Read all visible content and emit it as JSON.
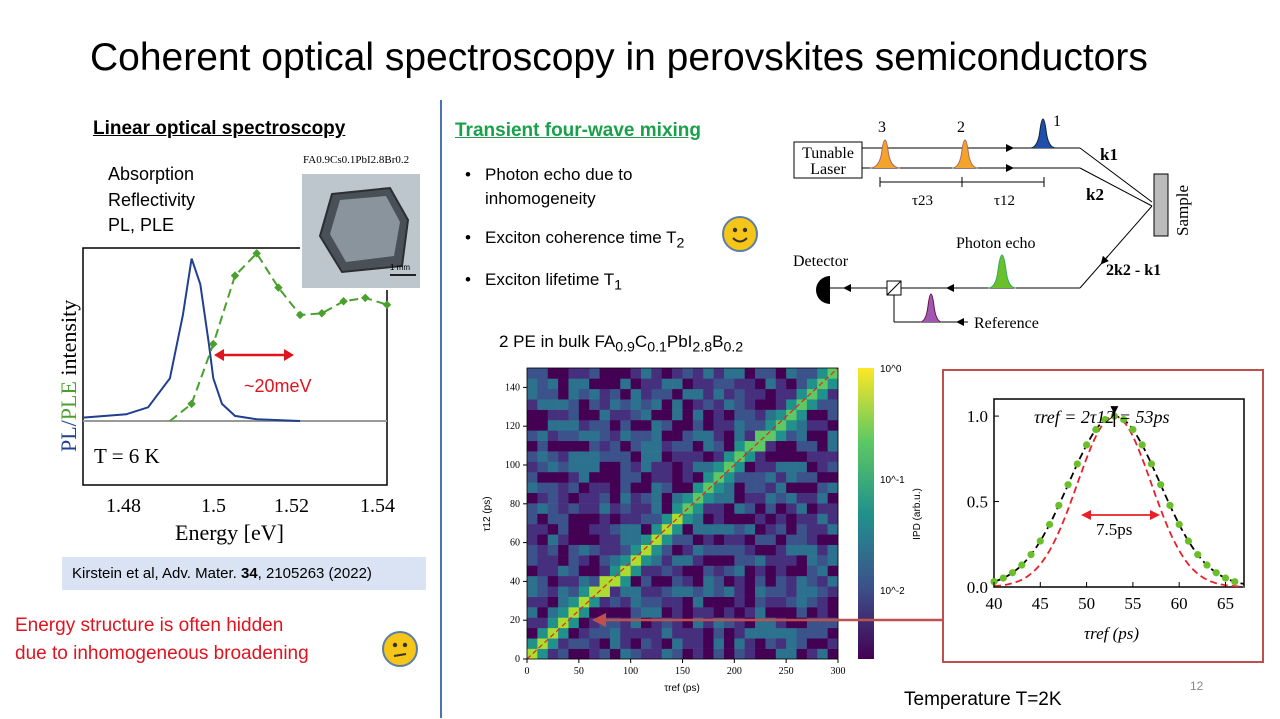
{
  "slide": {
    "title": "Coherent optical spectroscopy in perovskites semiconductors",
    "page_number": "12",
    "temperature_caption": "Temperature T=2K"
  },
  "left": {
    "heading": "Linear optical spectroscopy",
    "methods": [
      "Absorption",
      "Reflectivity",
      "PL, PLE"
    ],
    "inset_formula": "FA0.9Cs0.1PbI2.8Br0.2",
    "inset_scale": "1 mm",
    "plot": {
      "ylabel_pl": "PL",
      "ylabel_slash": "/",
      "ylabel_ple": "PLE",
      "ylabel_rest": " intensity",
      "xlabel": "Energy [eV]",
      "temperature": "T = 6 K",
      "annotation": "~20meV",
      "xticks": [
        "1.48",
        "1.5",
        "1.52",
        "1.54"
      ]
    },
    "citation": {
      "prefix": "Kirstein et al, Adv. Mater. ",
      "volume": "34",
      "suffix": ", 2105263 (2022)"
    },
    "note": [
      "Energy structure is often hidden",
      "due to inhomogeneous broadening"
    ]
  },
  "middle": {
    "heading": "Transient four-wave mixing",
    "bullets": [
      {
        "text": "Photon echo due to",
        "text2": "inhomogeneity"
      },
      {
        "text": "Exciton coherence time T",
        "sub": "2"
      },
      {
        "text": "Exciton lifetime T",
        "sub": "1"
      }
    ],
    "pe_title": {
      "prefix": "2 PE in bulk FA",
      "s1": "0.9",
      "c": "C",
      "s2": "0.1",
      "pbi": "PbI",
      "s3": "2.8",
      "b": "B",
      "s4": "0.2"
    },
    "heatmap": {
      "ylabel": "τ12 (ps)",
      "xlabel": "τref (ps)",
      "cbar_label": "IPD (arb.u.)",
      "cbar_ticks": [
        "10^0",
        "10^-1",
        "10^-2"
      ]
    }
  },
  "setup": {
    "laser": [
      "Tunable",
      "Laser"
    ],
    "pulse_labels": [
      "3",
      "2",
      "1"
    ],
    "delays": [
      "τ23",
      "τ12"
    ],
    "beams": [
      "k1",
      "k2",
      "2k2 - k1"
    ],
    "sample": "Sample",
    "detector": "Detector",
    "photon_echo": "Photon echo",
    "reference": "Reference"
  },
  "echo_plot": {
    "formula": "τref = 2τ12 = 53ps",
    "width_label": "7.5ps",
    "xlabel": "τref (ps)",
    "colors": {
      "data": "#6bbf2a",
      "fit": "#000000",
      "gauss": "#e8202a"
    }
  },
  "chart_data": [
    {
      "type": "line",
      "title": "",
      "xlabel": "Energy [eV]",
      "ylabel": "PL/PLE intensity",
      "xlim": [
        1.47,
        1.54
      ],
      "ylim": [
        0,
        1.0
      ],
      "series": [
        {
          "name": "PL",
          "color": "#1f3f8f",
          "x": [
            1.47,
            1.48,
            1.485,
            1.49,
            1.493,
            1.495,
            1.497,
            1.499,
            1.5,
            1.502,
            1.505,
            1.51,
            1.52
          ],
          "values": [
            0.02,
            0.04,
            0.08,
            0.25,
            0.62,
            0.95,
            0.8,
            0.45,
            0.25,
            0.1,
            0.03,
            0.01,
            0.0
          ]
        },
        {
          "name": "PLE",
          "color": "#4aa02c",
          "x": [
            1.49,
            1.495,
            1.5,
            1.505,
            1.51,
            1.515,
            1.52,
            1.525,
            1.53,
            1.535,
            1.54
          ],
          "values": [
            0.0,
            0.1,
            0.45,
            0.85,
            0.98,
            0.78,
            0.62,
            0.63,
            0.7,
            0.72,
            0.68
          ]
        }
      ]
    },
    {
      "type": "heatmap",
      "title": "",
      "xlabel": "τref (ps)",
      "ylabel": "τ12 (ps)",
      "xlim": [
        0,
        300
      ],
      "ylim": [
        0,
        150
      ],
      "xticks": [
        0,
        50,
        100,
        150,
        200,
        250,
        300
      ],
      "yticks": [
        0,
        20,
        40,
        60,
        80,
        100,
        120,
        140
      ],
      "diagonal": {
        "x": [
          0,
          300
        ],
        "y": [
          0,
          150
        ]
      }
    },
    {
      "type": "scatter",
      "title": "",
      "xlabel": "τref (ps)",
      "xlim": [
        40,
        67
      ],
      "ylim": [
        0,
        1.1
      ],
      "xticks": [
        40,
        45,
        50,
        55,
        60,
        65
      ],
      "yticks": [
        0.0,
        0.5,
        1.0
      ],
      "center": 53,
      "fwhm": 7.5
    }
  ]
}
